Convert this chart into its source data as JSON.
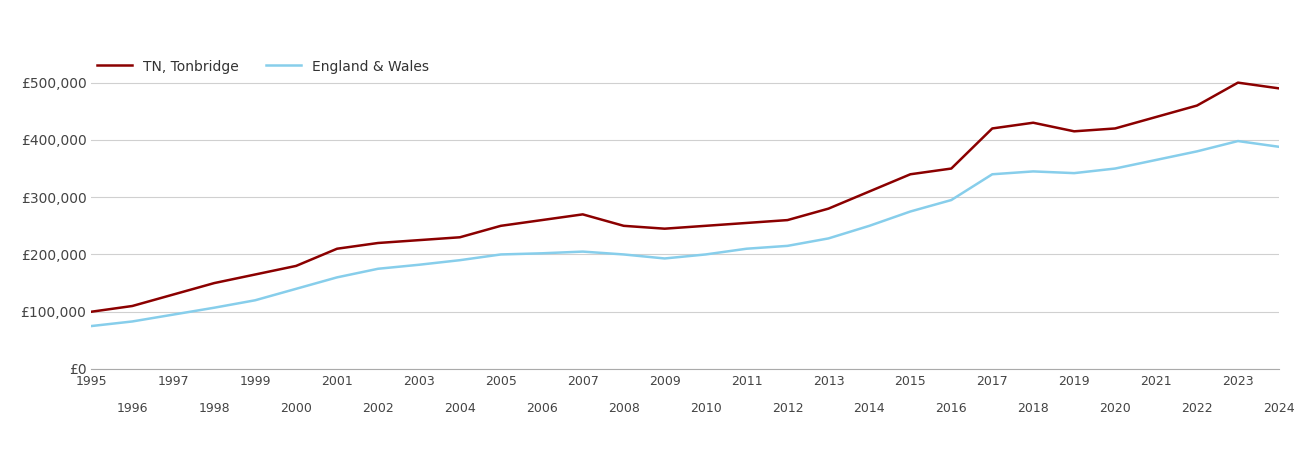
{
  "years": [
    1995,
    1996,
    1997,
    1998,
    1999,
    2000,
    2001,
    2002,
    2003,
    2004,
    2005,
    2006,
    2007,
    2008,
    2009,
    2010,
    2011,
    2012,
    2013,
    2014,
    2015,
    2016,
    2017,
    2018,
    2019,
    2020,
    2021,
    2022,
    2023,
    2024
  ],
  "tonbridge": [
    100000,
    110000,
    130000,
    150000,
    165000,
    180000,
    210000,
    220000,
    225000,
    230000,
    250000,
    260000,
    270000,
    250000,
    245000,
    250000,
    255000,
    260000,
    280000,
    310000,
    340000,
    350000,
    420000,
    430000,
    415000,
    420000,
    440000,
    460000,
    500000,
    490000
  ],
  "england_wales": [
    75000,
    83000,
    95000,
    107000,
    120000,
    140000,
    160000,
    175000,
    182000,
    190000,
    200000,
    202000,
    205000,
    200000,
    193000,
    200000,
    210000,
    215000,
    228000,
    250000,
    275000,
    295000,
    340000,
    345000,
    342000,
    350000,
    365000,
    380000,
    398000,
    388000
  ],
  "tn_color": "#8B0000",
  "ew_color": "#87CEEB",
  "tn_label": "TN, Tonbridge",
  "ew_label": "England & Wales",
  "ylim": [
    0,
    550000
  ],
  "yticks": [
    0,
    100000,
    200000,
    300000,
    400000,
    500000
  ],
  "ytick_labels": [
    "£0",
    "£100,000",
    "£200,000",
    "£300,000",
    "£400,000",
    "£500,000"
  ],
  "line_width": 1.8,
  "background_color": "#ffffff",
  "grid_color": "#d0d0d0"
}
